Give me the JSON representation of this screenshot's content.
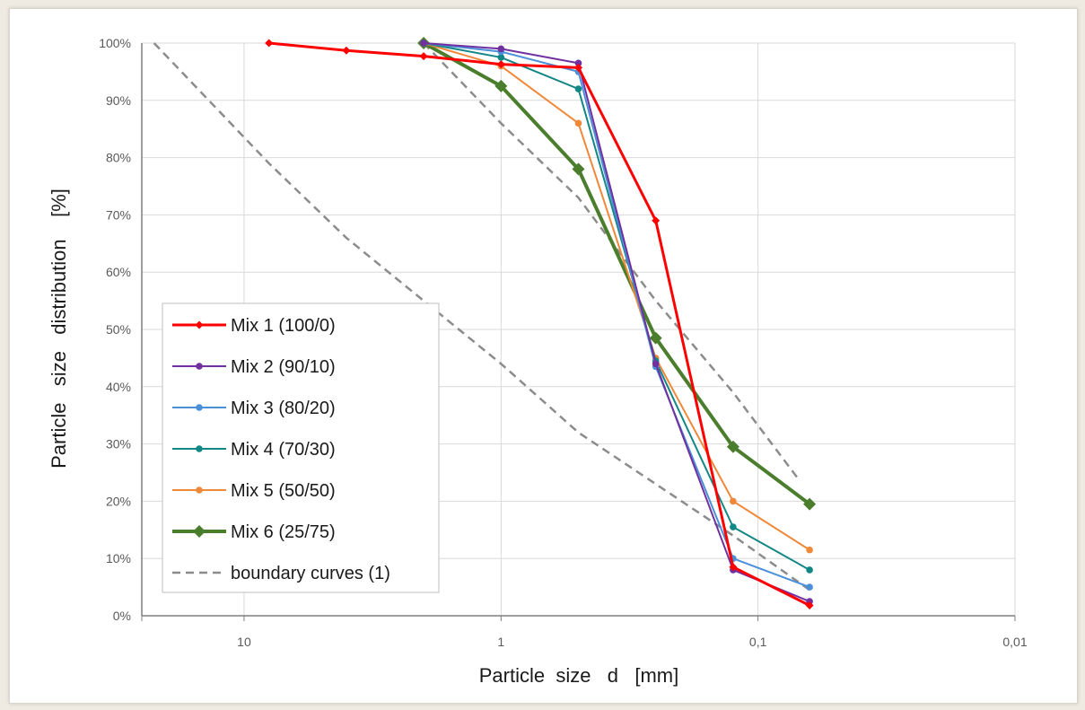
{
  "chart_data": {
    "type": "line",
    "xlabel": "Particle  size   d   [mm]",
    "ylabel": "Particle   size   distribution    [%]",
    "x_scale": "log",
    "x_reversed": true,
    "xlim": [
      25,
      0.01
    ],
    "ylim": [
      0,
      100
    ],
    "x_ticks": [
      10,
      1,
      0.1,
      0.01
    ],
    "x_tick_labels": [
      "10",
      "1",
      "0,1",
      "0,01"
    ],
    "y_ticks": [
      0,
      10,
      20,
      30,
      40,
      50,
      60,
      70,
      80,
      90,
      100
    ],
    "y_tick_labels": [
      "0%",
      "10%",
      "20%",
      "30%",
      "40%",
      "50%",
      "60%",
      "70%",
      "80%",
      "90%",
      "100%"
    ],
    "grid": true,
    "legend_position": "left-bottom",
    "series": [
      {
        "name": "Mix 1 (100/0)",
        "color": "#ff0000",
        "marker": "diamond",
        "width": 3,
        "x": [
          8,
          4,
          2,
          1,
          0.5,
          0.25,
          0.125,
          0.063
        ],
        "y": [
          100,
          98.7,
          97.7,
          96.3,
          95.7,
          69,
          8.5,
          1.8
        ]
      },
      {
        "name": "Mix 2 (90/10)",
        "color": "#7030a0",
        "marker": "circle",
        "width": 2,
        "x": [
          2,
          1,
          0.5,
          0.25,
          0.125,
          0.063
        ],
        "y": [
          100,
          99,
          96.5,
          44,
          8,
          2.5
        ]
      },
      {
        "name": "Mix 3 (80/20)",
        "color": "#4a8fd9",
        "marker": "circle",
        "width": 2,
        "x": [
          2,
          1,
          0.5,
          0.25,
          0.125,
          0.063
        ],
        "y": [
          100,
          98.5,
          95,
          43.5,
          10,
          5
        ]
      },
      {
        "name": "Mix 4 (70/30)",
        "color": "#138686",
        "marker": "circle",
        "width": 2,
        "x": [
          2,
          1,
          0.5,
          0.25,
          0.125,
          0.063
        ],
        "y": [
          100,
          97.5,
          92,
          44.5,
          15.5,
          8
        ]
      },
      {
        "name": "Mix 5 (50/50)",
        "color": "#f0883a",
        "marker": "circle",
        "width": 2,
        "x": [
          2,
          1,
          0.5,
          0.25,
          0.125,
          0.063
        ],
        "y": [
          100,
          96,
          86,
          45,
          20,
          11.5
        ]
      },
      {
        "name": "Mix 6 (25/75)",
        "color": "#4a7e2c",
        "marker": "diamond",
        "width": 4,
        "x": [
          2,
          1,
          0.5,
          0.25,
          0.125,
          0.063
        ],
        "y": [
          100,
          92.5,
          78,
          48.5,
          29.5,
          19.5
        ]
      },
      {
        "name": "boundary curves (1)",
        "color": "#8c8c8c",
        "marker": "none",
        "width": 2.5,
        "dash": true,
        "x": [
          22.4,
          8,
          4,
          2,
          1,
          0.5,
          0.25,
          0.125,
          0.063
        ],
        "y": [
          100,
          79,
          66,
          55,
          44,
          32,
          23,
          14,
          4.5
        ]
      },
      {
        "name": "",
        "color": "#8c8c8c",
        "marker": "none",
        "width": 2.5,
        "dash": true,
        "legend": false,
        "x": [
          2,
          1,
          0.5,
          0.25,
          0.125,
          0.07
        ],
        "y": [
          100,
          86,
          73,
          55,
          39,
          24
        ]
      }
    ]
  }
}
